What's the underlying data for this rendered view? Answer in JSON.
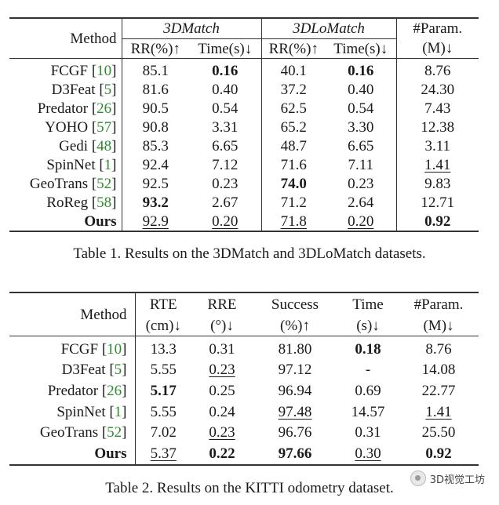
{
  "table1": {
    "method_header": "Method",
    "group1": "3DMatch",
    "group2": "3DLoMatch",
    "param_header_line1": "#Param.",
    "param_header_line2": "(M)↓",
    "sub_headers": [
      "RR(%)↑",
      "Time(s)↓",
      "RR(%)↑",
      "Time(s)↓"
    ],
    "rows": [
      {
        "method": "FCGF",
        "ref": "10",
        "rr1": "85.1",
        "t1": "0.16",
        "rr2": "40.1",
        "t2": "0.16",
        "param": "8.76"
      },
      {
        "method": "D3Feat",
        "ref": "5",
        "rr1": "81.6",
        "t1": "0.40",
        "rr2": "37.2",
        "t2": "0.40",
        "param": "24.30"
      },
      {
        "method": "Predator",
        "ref": "26",
        "rr1": "90.5",
        "t1": "0.54",
        "rr2": "62.5",
        "t2": "0.54",
        "param": "7.43"
      },
      {
        "method": "YOHO",
        "ref": "57",
        "rr1": "90.8",
        "t1": "3.31",
        "rr2": "65.2",
        "t2": "3.30",
        "param": "12.38"
      },
      {
        "method": "Gedi",
        "ref": "48",
        "rr1": "85.3",
        "t1": "6.65",
        "rr2": "48.7",
        "t2": "6.65",
        "param": "3.11"
      },
      {
        "method": "SpinNet",
        "ref": "1",
        "rr1": "92.4",
        "t1": "7.12",
        "rr2": "71.6",
        "t2": "7.11",
        "param": "1.41"
      },
      {
        "method": "GeoTrans",
        "ref": "52",
        "rr1": "92.5",
        "t1": "0.23",
        "rr2": "74.0",
        "t2": "0.23",
        "param": "9.83"
      },
      {
        "method": "RoReg",
        "ref": "58",
        "rr1": "93.2",
        "t1": "2.67",
        "rr2": "71.2",
        "t2": "2.64",
        "param": "12.71"
      },
      {
        "method": "Ours",
        "ref": "",
        "rr1": "92.9",
        "t1": "0.20",
        "rr2": "71.8",
        "t2": "0.20",
        "param": "0.92"
      }
    ],
    "caption": "Table 1. Results on the 3DMatch and 3DLoMatch datasets."
  },
  "table2": {
    "method_header": "Method",
    "headers_line1": [
      "RTE",
      "RRE",
      "Success",
      "Time",
      "#Param."
    ],
    "headers_line2": [
      "(cm)↓",
      "(°)↓",
      "(%)↑",
      "(s)↓",
      "(M)↓"
    ],
    "rows": [
      {
        "method": "FCGF",
        "ref": "10",
        "rte": "13.3",
        "rre": "0.31",
        "success": "81.80",
        "time": "0.18",
        "param": "8.76"
      },
      {
        "method": "D3Feat",
        "ref": "5",
        "rte": "5.55",
        "rre": "0.23",
        "success": "97.12",
        "time": "-",
        "param": "14.08"
      },
      {
        "method": "Predator",
        "ref": "26",
        "rte": "5.17",
        "rre": "0.25",
        "success": "96.94",
        "time": "0.69",
        "param": "22.77"
      },
      {
        "method": "SpinNet",
        "ref": "1",
        "rte": "5.55",
        "rre": "0.24",
        "success": "97.48",
        "time": "14.57",
        "param": "1.41"
      },
      {
        "method": "GeoTrans",
        "ref": "52",
        "rte": "7.02",
        "rre": "0.23",
        "success": "96.76",
        "time": "0.31",
        "param": "25.50"
      },
      {
        "method": "Ours",
        "ref": "",
        "rte": "5.37",
        "rre": "0.22",
        "success": "97.66",
        "time": "0.30",
        "param": "0.92"
      }
    ],
    "caption": "Table 2. Results on the KITTI odometry dataset."
  },
  "watermark": "3D视觉工坊",
  "colors": {
    "reference_link": "#2e8b2e",
    "text": "#1a1a1a"
  }
}
